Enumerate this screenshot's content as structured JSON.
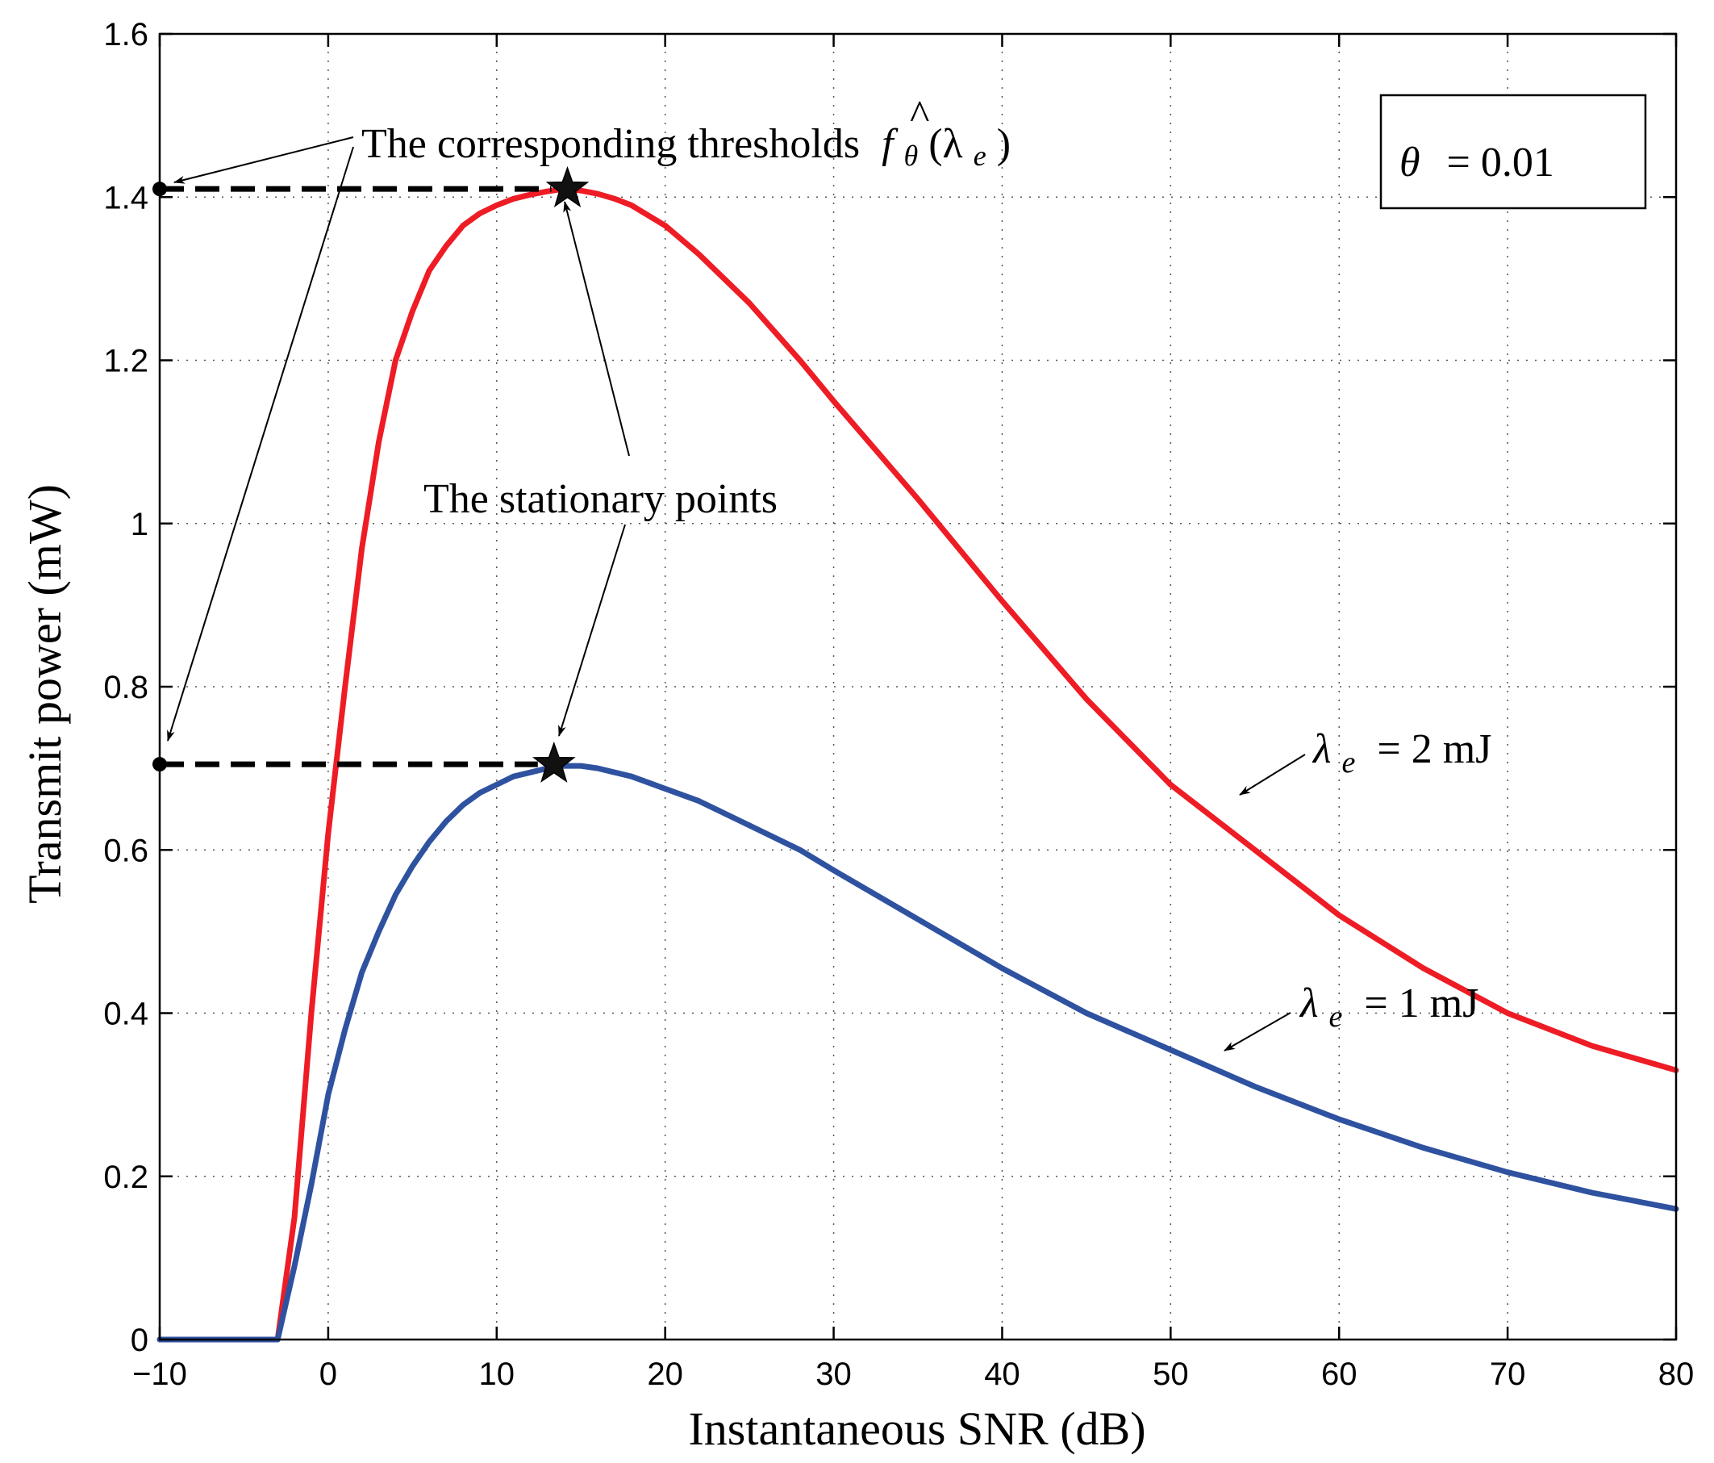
{
  "chart_data": {
    "type": "line",
    "title": "",
    "xlabel": "Instantaneous SNR (dB)",
    "ylabel": "Transmit power (mW)",
    "xlim": [
      -10,
      80
    ],
    "ylim": [
      0,
      1.6
    ],
    "xticks": [
      -10,
      0,
      10,
      20,
      30,
      40,
      50,
      60,
      70,
      80
    ],
    "xtick_labels": [
      "−10",
      "0",
      "10",
      "20",
      "30",
      "40",
      "50",
      "60",
      "70",
      "80"
    ],
    "yticks": [
      0,
      0.2,
      0.4,
      0.6,
      0.8,
      1.0,
      1.2,
      1.4,
      1.6
    ],
    "ytick_labels": [
      "0",
      "0.2",
      "0.4",
      "0.6",
      "0.8",
      "1",
      "1.2",
      "1.4",
      "1.6"
    ],
    "grid": true,
    "series": [
      {
        "name": "λ_e = 2 mJ",
        "color": "#ee1c25",
        "x": [
          -10,
          -3,
          -2,
          -1,
          0,
          1,
          2,
          3,
          4,
          5,
          6,
          7,
          8,
          9,
          10,
          11,
          12,
          13,
          14,
          15,
          16,
          17,
          18,
          20,
          22,
          25,
          28,
          30,
          35,
          40,
          45,
          50,
          55,
          60,
          65,
          70,
          75,
          80
        ],
        "y": [
          0,
          0,
          0.15,
          0.4,
          0.62,
          0.8,
          0.97,
          1.1,
          1.2,
          1.26,
          1.31,
          1.34,
          1.365,
          1.38,
          1.39,
          1.398,
          1.403,
          1.407,
          1.41,
          1.408,
          1.404,
          1.398,
          1.39,
          1.365,
          1.33,
          1.27,
          1.2,
          1.15,
          1.03,
          0.905,
          0.785,
          0.68,
          0.6,
          0.52,
          0.455,
          0.4,
          0.36,
          0.33
        ]
      },
      {
        "name": "λ_e = 1 mJ",
        "color": "#2f52a0",
        "x": [
          -10,
          -3,
          -2,
          -1,
          0,
          1,
          2,
          3,
          4,
          5,
          6,
          7,
          8,
          9,
          10,
          11,
          12,
          13,
          14,
          15,
          16,
          17,
          18,
          20,
          22,
          25,
          28,
          30,
          35,
          40,
          45,
          50,
          55,
          60,
          65,
          70,
          75,
          80
        ],
        "y": [
          0,
          0,
          0.09,
          0.19,
          0.3,
          0.38,
          0.45,
          0.5,
          0.545,
          0.58,
          0.61,
          0.635,
          0.655,
          0.67,
          0.68,
          0.69,
          0.695,
          0.7,
          0.703,
          0.703,
          0.7,
          0.695,
          0.69,
          0.675,
          0.66,
          0.63,
          0.6,
          0.575,
          0.515,
          0.455,
          0.4,
          0.355,
          0.31,
          0.27,
          0.235,
          0.205,
          0.18,
          0.16
        ]
      }
    ],
    "threshold_markers": [
      {
        "x_start": -10,
        "x_end": 14.2,
        "y": 1.41
      },
      {
        "x_start": -10,
        "x_end": 13.4,
        "y": 0.705
      }
    ],
    "annotations": {
      "thresholds_text": "The corresponding thresholds",
      "thresholds_math_f": "f",
      "thresholds_math_theta": "θ",
      "thresholds_math_arg": "(λ",
      "thresholds_math_e": "e",
      "thresholds_math_close": ")",
      "stationary_text": "The stationary points",
      "theta_box_symbol": "θ",
      "theta_box_value": "= 0.01",
      "label_2mJ_lambda": "λ",
      "label_2mJ_sub": "e",
      "label_2mJ_value": "= 2  mJ",
      "label_1mJ_lambda": "λ",
      "label_1mJ_sub": "e",
      "label_1mJ_value": "= 1  mJ"
    }
  }
}
